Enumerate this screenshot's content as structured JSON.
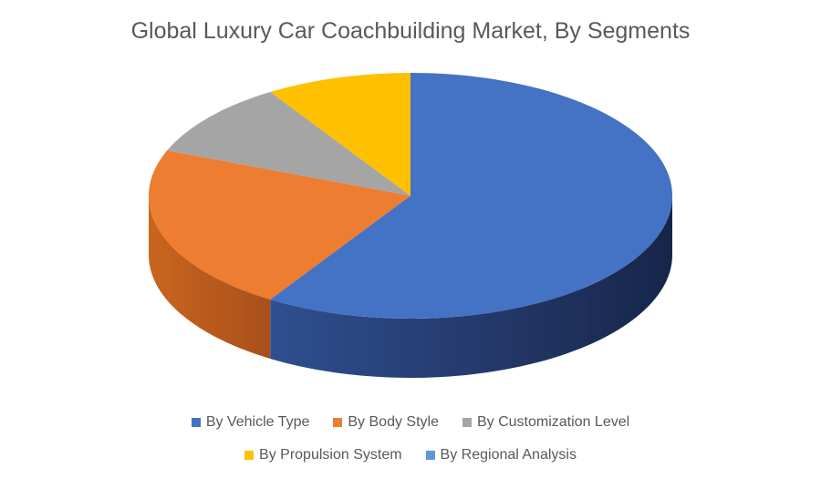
{
  "chart_data": {
    "type": "pie",
    "title": "Global Luxury Car Coachbuilding Market, By Segments",
    "categories": [
      "By Vehicle Type",
      "By Body Style",
      "By Customization Level",
      "By Propulsion System",
      "By Regional Analysis"
    ],
    "values": [
      59,
      22,
      10,
      9,
      0
    ],
    "colors": [
      "#4472C4",
      "#ED7D31",
      "#A5A5A5",
      "#FFC000",
      "#5B9BD5"
    ],
    "legend_position": "bottom",
    "style": "3d"
  }
}
